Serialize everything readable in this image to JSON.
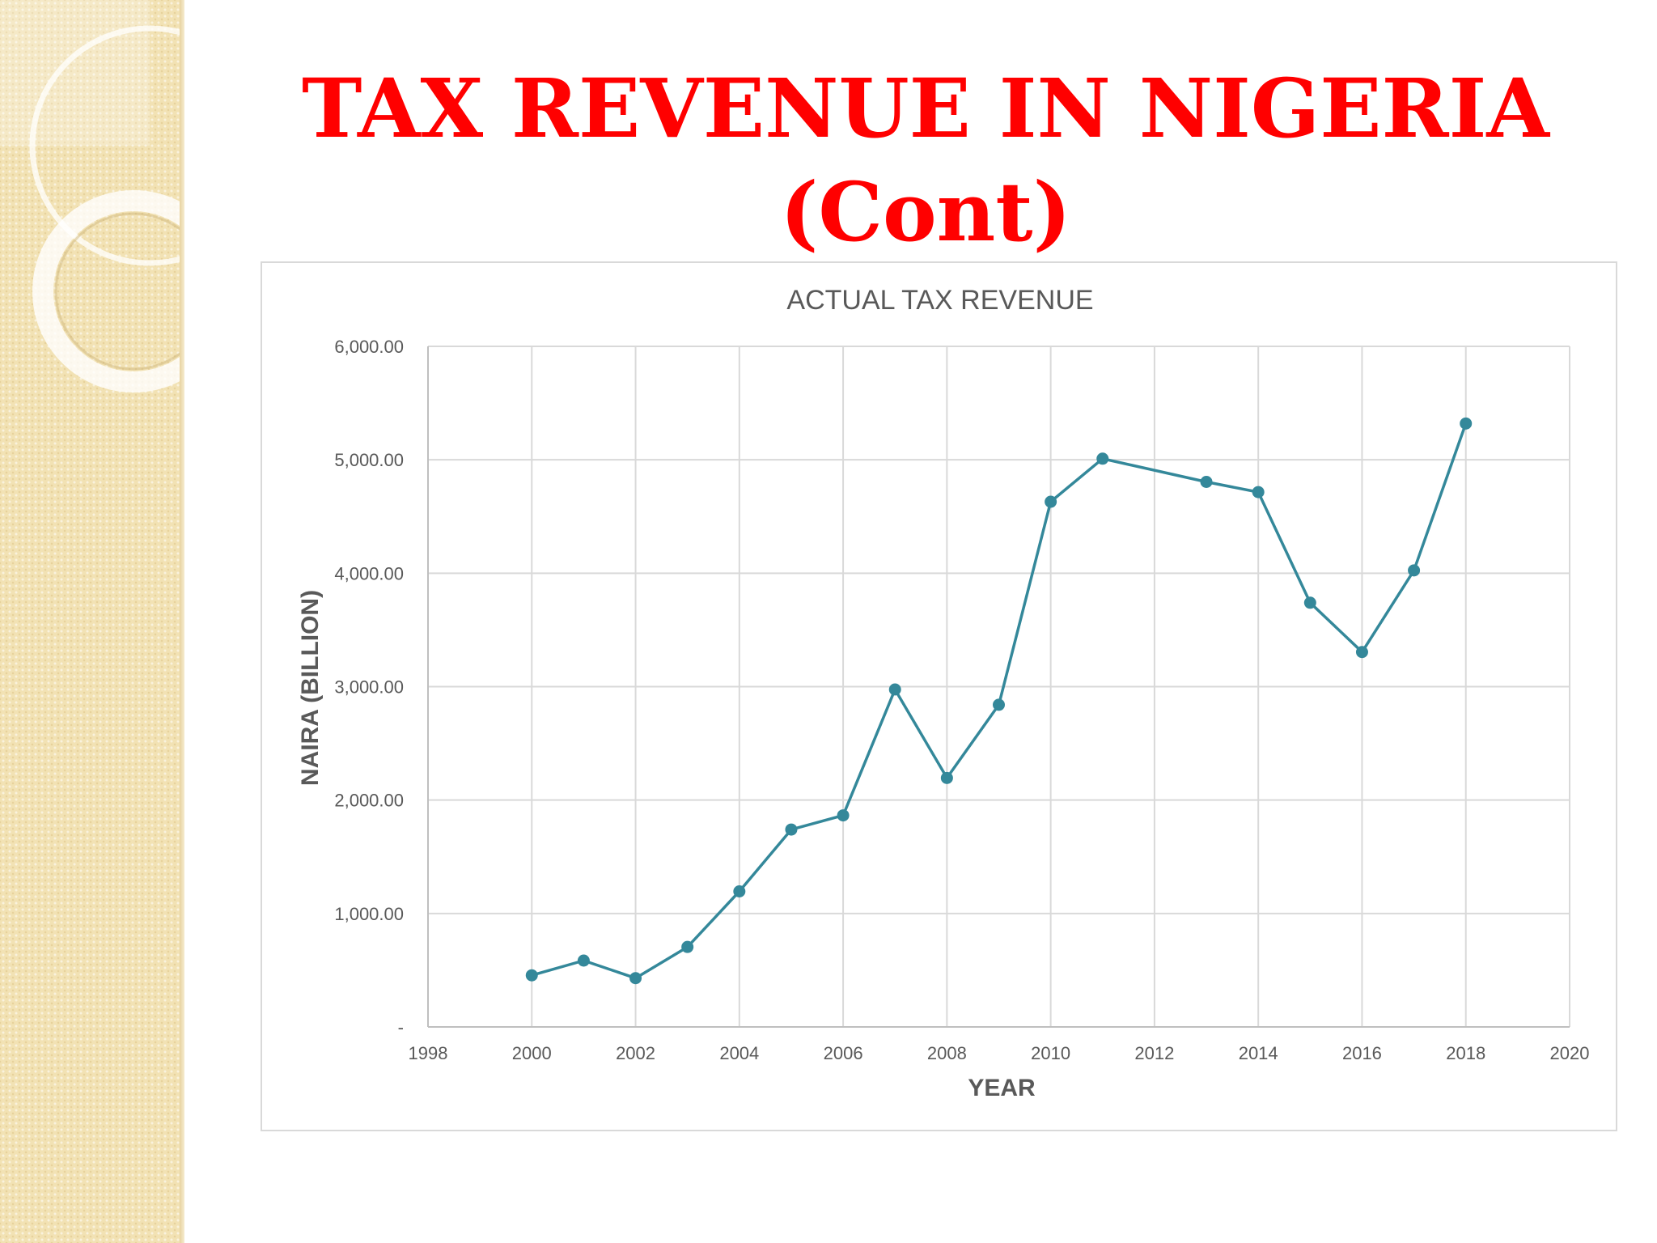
{
  "slide": {
    "title_line1": "TAX REVENUE IN NIGERIA",
    "title_line2": "(Cont)"
  },
  "colors": {
    "title": "#ff0000",
    "series": "#34889a",
    "grid": "#d9d9d9",
    "axis_text": "#595959",
    "side_strip": "#f2e2b4"
  },
  "chart_data": {
    "type": "scatter",
    "title": "ACTUAL TAX REVENUE",
    "xlabel": "YEAR",
    "ylabel": "NAIRA (BILLION)",
    "xlim": [
      1998,
      2020
    ],
    "ylim": [
      0,
      6000
    ],
    "x_ticks": [
      "1998",
      "2000",
      "2002",
      "2004",
      "2006",
      "2008",
      "2010",
      "2012",
      "2014",
      "2016",
      "2018",
      "2020"
    ],
    "x_tick_values": [
      1998,
      2000,
      2002,
      2004,
      2006,
      2008,
      2010,
      2012,
      2014,
      2016,
      2018,
      2020
    ],
    "y_ticks": [
      "-",
      "1,000.00",
      "2,000.00",
      "3,000.00",
      "4,000.00",
      "5,000.00",
      "6,000.00"
    ],
    "y_tick_values": [
      0,
      1000,
      2000,
      3000,
      4000,
      5000,
      6000
    ],
    "grid": true,
    "legend": "none",
    "markers": true,
    "lines": true,
    "series": [
      {
        "x": [
          2000,
          2001,
          2002,
          2003,
          2004,
          2005,
          2006,
          2007,
          2008,
          2009,
          2010,
          2011,
          2013,
          2014,
          2015,
          2016,
          2017,
          2018
        ],
        "values": [
          455,
          585,
          430,
          705,
          1195,
          1740,
          1865,
          2975,
          2195,
          2840,
          4630,
          5010,
          4805,
          4715,
          3740,
          3305,
          4025,
          5320
        ]
      }
    ]
  }
}
